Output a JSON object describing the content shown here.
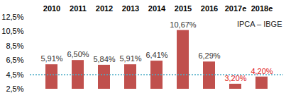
{
  "chart_data": {
    "type": "bar",
    "annotation": "IPCA – IBGE",
    "categories": [
      "2010",
      "2011",
      "2012",
      "2013",
      "2014",
      "2015",
      "2016",
      "2017e",
      "2018e"
    ],
    "values": [
      5.91,
      6.5,
      5.84,
      5.91,
      6.41,
      10.67,
      6.29,
      3.2,
      4.2
    ],
    "value_labels": [
      "5,91%",
      "6,50%",
      "5,84%",
      "5,91%",
      "6,41%",
      "10,67%",
      "6,29%",
      "3,20%",
      "4,20%"
    ],
    "color": "#c0504d",
    "ylim": [
      2.5,
      12.5
    ],
    "yticks": [
      {
        "value": 2.5,
        "label": "2,5%"
      },
      {
        "value": 4.5,
        "label": "4,5%"
      },
      {
        "value": 6.5,
        "label": "6,5%"
      },
      {
        "value": 8.5,
        "label": "8,5%"
      },
      {
        "value": 10.5,
        "label": "10,5%"
      },
      {
        "value": 12.5,
        "label": "12,5%"
      }
    ],
    "target_line": 4.5,
    "grid": false,
    "data_labels": true
  }
}
